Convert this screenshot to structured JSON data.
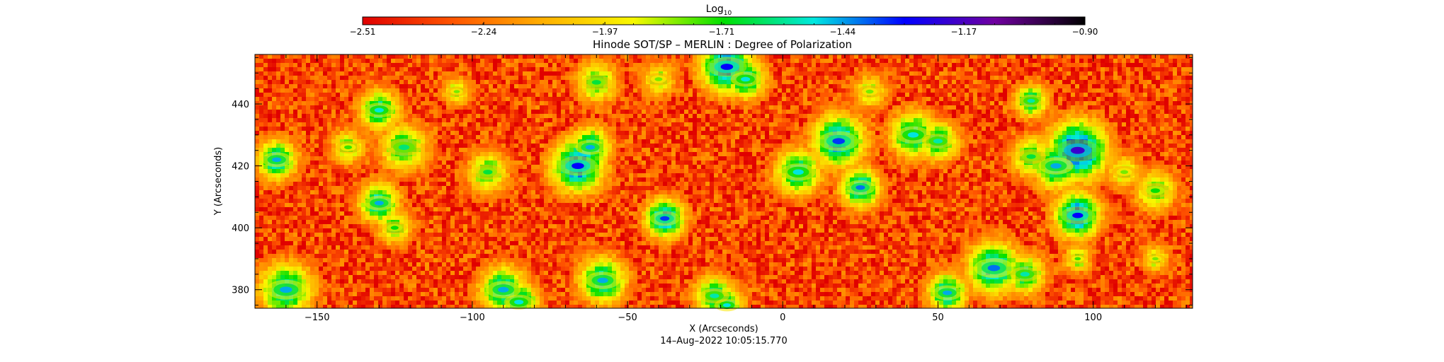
{
  "chart_data": {
    "type": "heatmap",
    "title": "Hinode SOT/SP – MERLIN : Degree of Polarization",
    "xlabel": "X (Arcseconds)",
    "ylabel": "Y (Arcseconds)",
    "timestamp": "14–Aug–2022 10:05:15.770",
    "xlim": [
      -170,
      132
    ],
    "ylim": [
      374,
      456
    ],
    "x_ticks": [
      -150,
      -100,
      -50,
      0,
      50,
      100
    ],
    "x_tick_labels": [
      "−150",
      "−100",
      "−50",
      "0",
      "50",
      "100"
    ],
    "y_ticks": [
      380,
      400,
      420,
      440
    ],
    "y_tick_labels": [
      "380",
      "400",
      "420",
      "440"
    ],
    "colorbar": {
      "label_main": "Log",
      "label_sub": "10",
      "range": [
        -2.51,
        -0.9
      ],
      "ticks": [
        -2.51,
        -2.24,
        -1.97,
        -1.71,
        -1.44,
        -1.17,
        -0.9
      ],
      "tick_labels": [
        "−2.51",
        "−2.24",
        "−1.97",
        "−1.71",
        "−1.44",
        "−1.17",
        "−0.90"
      ],
      "colormap": [
        "#e00000",
        "#ff5500",
        "#ffb000",
        "#f8f800",
        "#00e000",
        "#00e8e0",
        "#0000ff",
        "#7000a0",
        "#000000"
      ]
    },
    "background_level": -2.35,
    "patches": [
      {
        "x": -163,
        "y": 422,
        "r": 3.0,
        "peak": -1.45
      },
      {
        "x": -130,
        "y": 438,
        "r": 3.0,
        "peak": -1.5
      },
      {
        "x": -122,
        "y": 426,
        "r": 3.5,
        "peak": -1.6
      },
      {
        "x": -130,
        "y": 408,
        "r": 3.0,
        "peak": -1.45
      },
      {
        "x": -125,
        "y": 400,
        "r": 2.5,
        "peak": -1.7
      },
      {
        "x": -160,
        "y": 380,
        "r": 4.0,
        "peak": -1.45
      },
      {
        "x": -140,
        "y": 426,
        "r": 2.5,
        "peak": -1.75
      },
      {
        "x": -95,
        "y": 418,
        "r": 3.0,
        "peak": -1.65
      },
      {
        "x": -90,
        "y": 380,
        "r": 3.5,
        "peak": -1.45
      },
      {
        "x": -85,
        "y": 376,
        "r": 3.0,
        "peak": -1.5
      },
      {
        "x": -66,
        "y": 420,
        "r": 4.0,
        "peak": -1.3
      },
      {
        "x": -62,
        "y": 426,
        "r": 3.0,
        "peak": -1.45
      },
      {
        "x": -58,
        "y": 383,
        "r": 3.5,
        "peak": -1.45
      },
      {
        "x": -60,
        "y": 447,
        "r": 3.0,
        "peak": -1.65
      },
      {
        "x": -38,
        "y": 403,
        "r": 3.0,
        "peak": -1.35
      },
      {
        "x": -18,
        "y": 452,
        "r": 4.0,
        "peak": -1.3
      },
      {
        "x": -12,
        "y": 448,
        "r": 3.0,
        "peak": -1.5
      },
      {
        "x": -22,
        "y": 378,
        "r": 3.0,
        "peak": -1.55
      },
      {
        "x": -18,
        "y": 375,
        "r": 2.5,
        "peak": -1.5
      },
      {
        "x": 5,
        "y": 418,
        "r": 3.5,
        "peak": -1.5
      },
      {
        "x": 18,
        "y": 428,
        "r": 4.0,
        "peak": -1.35
      },
      {
        "x": 25,
        "y": 413,
        "r": 3.0,
        "peak": -1.4
      },
      {
        "x": 42,
        "y": 430,
        "r": 3.5,
        "peak": -1.5
      },
      {
        "x": 50,
        "y": 428,
        "r": 3.0,
        "peak": -1.55
      },
      {
        "x": 53,
        "y": 379,
        "r": 3.0,
        "peak": -1.45
      },
      {
        "x": 68,
        "y": 387,
        "r": 4.0,
        "peak": -1.4
      },
      {
        "x": 78,
        "y": 385,
        "r": 3.0,
        "peak": -1.55
      },
      {
        "x": 80,
        "y": 423,
        "r": 3.0,
        "peak": -1.65
      },
      {
        "x": 95,
        "y": 425,
        "r": 4.5,
        "peak": -1.2
      },
      {
        "x": 88,
        "y": 420,
        "r": 3.5,
        "peak": -1.45
      },
      {
        "x": 95,
        "y": 404,
        "r": 3.5,
        "peak": -1.3
      },
      {
        "x": 80,
        "y": 441,
        "r": 2.5,
        "peak": -1.55
      },
      {
        "x": 110,
        "y": 418,
        "r": 2.5,
        "peak": -1.8
      },
      {
        "x": 120,
        "y": 412,
        "r": 3.0,
        "peak": -1.7
      },
      {
        "x": 95,
        "y": 390,
        "r": 2.0,
        "peak": -1.75
      },
      {
        "x": -40,
        "y": 448,
        "r": 2.5,
        "peak": -1.8
      },
      {
        "x": 28,
        "y": 444,
        "r": 2.5,
        "peak": -1.8
      },
      {
        "x": -105,
        "y": 444,
        "r": 2.0,
        "peak": -1.8
      },
      {
        "x": 120,
        "y": 390,
        "r": 2.0,
        "peak": -1.8
      }
    ]
  }
}
